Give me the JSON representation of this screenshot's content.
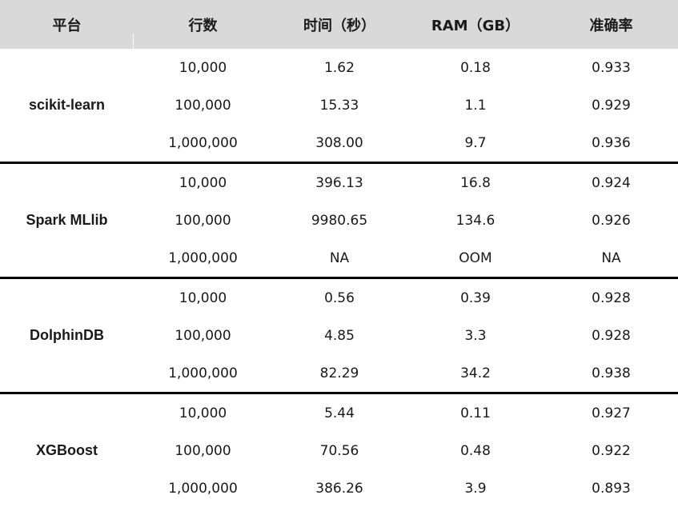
{
  "header": {
    "platform": "平台",
    "rows": "行数",
    "time": "时间（秒）",
    "ram": "RAM（GB）",
    "accuracy": "准确率"
  },
  "groups": [
    {
      "platform": "scikit-learn",
      "rows": [
        {
          "rows": "10,000",
          "time": "1.62",
          "ram": "0.18",
          "accuracy": "0.933"
        },
        {
          "rows": "100,000",
          "time": "15.33",
          "ram": "1.1",
          "accuracy": "0.929"
        },
        {
          "rows": "1,000,000",
          "time": "308.00",
          "ram": "9.7",
          "accuracy": "0.936"
        }
      ]
    },
    {
      "platform": "Spark MLlib",
      "rows": [
        {
          "rows": "10,000",
          "time": "396.13",
          "ram": "16.8",
          "accuracy": "0.924"
        },
        {
          "rows": "100,000",
          "time": "9980.65",
          "ram": "134.6",
          "accuracy": "0.926"
        },
        {
          "rows": "1,000,000",
          "time": "NA",
          "ram": "OOM",
          "accuracy": "NA"
        }
      ]
    },
    {
      "platform": "DolphinDB",
      "rows": [
        {
          "rows": "10,000",
          "time": "0.56",
          "ram": "0.39",
          "accuracy": "0.928"
        },
        {
          "rows": "100,000",
          "time": "4.85",
          "ram": "3.3",
          "accuracy": "0.928"
        },
        {
          "rows": "1,000,000",
          "time": "82.29",
          "ram": "34.2",
          "accuracy": "0.938"
        }
      ]
    },
    {
      "platform": "XGBoost",
      "rows": [
        {
          "rows": "10,000",
          "time": "5.44",
          "ram": "0.11",
          "accuracy": "0.927"
        },
        {
          "rows": "100,000",
          "time": "70.56",
          "ram": "0.48",
          "accuracy": "0.922"
        },
        {
          "rows": "1,000,000",
          "time": "386.26",
          "ram": "3.9",
          "accuracy": "0.893"
        }
      ]
    }
  ]
}
